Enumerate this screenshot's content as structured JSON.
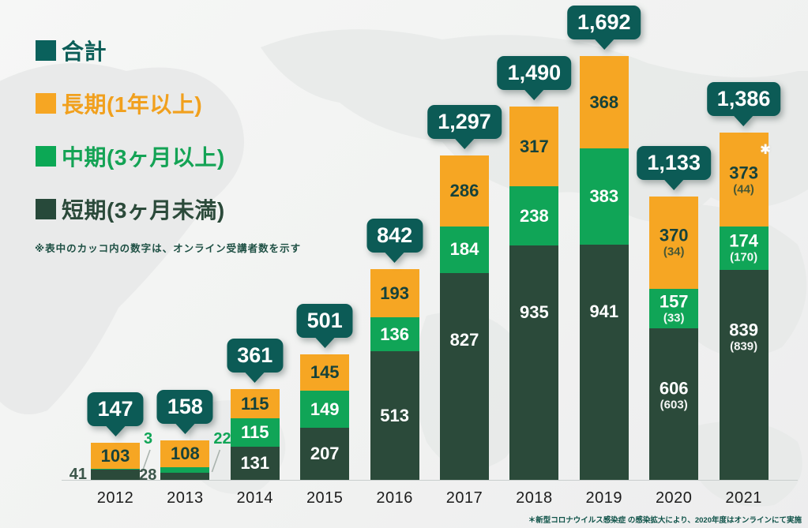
{
  "colors": {
    "background": "#f2f3f2",
    "map_shape": "#e6e8e7",
    "bubble": "#0c5b56",
    "bubble_text": "#ffffff",
    "total_legend": "#0a615c",
    "long_orange": "#f6a623",
    "mid_green": "#0fa65a",
    "short_dark_green": "#2b4a3a",
    "dark_label_text": "#16423b",
    "outside_dark_label": "#3c564a",
    "leader_line": "#a9b3ae",
    "axis_line": "#c9cecd",
    "note_text": "#1d4f43"
  },
  "legend": {
    "items": [
      {
        "label": "合計",
        "color": "#0a615c",
        "text_color": "#0c5e58"
      },
      {
        "label": "長期(1年以上)",
        "color": "#f6a623",
        "text_color": "#f1a01d"
      },
      {
        "label": "中期(3ヶ月以上)",
        "color": "#0ca855",
        "text_color": "#14a355"
      },
      {
        "label": "短期(3ヶ月未満)",
        "color": "#27493a",
        "text_color": "#2b4a3a"
      }
    ]
  },
  "online_note": "※表中のカッコ内の数字は、オンライン受講者数を示す",
  "covid_footnote": "＊新型コロナウイルス感染症 の感染拡大により、2020年度はオンラインにて実施",
  "asterisk_marker": "✱",
  "chart_data": {
    "type": "bar",
    "stacked": true,
    "title": "",
    "xlabel": "",
    "ylabel": "",
    "grid": false,
    "legend_position": "top-left",
    "categories": [
      "2012",
      "2013",
      "2014",
      "2015",
      "2016",
      "2017",
      "2018",
      "2019",
      "2020",
      "2021"
    ],
    "series": [
      {
        "name": "短期(3ヶ月未満)",
        "color": "#2b4a3a",
        "label_color": "#ffffff",
        "values": [
          41,
          28,
          131,
          207,
          513,
          827,
          935,
          941,
          606,
          839
        ],
        "online_values": [
          null,
          null,
          null,
          null,
          null,
          null,
          null,
          null,
          603,
          839
        ]
      },
      {
        "name": "中期(3ヶ月以上)",
        "color": "#10a557",
        "label_color": "#ffffff",
        "values": [
          3,
          22,
          115,
          149,
          136,
          184,
          238,
          383,
          157,
          174
        ],
        "online_values": [
          null,
          null,
          null,
          null,
          null,
          null,
          null,
          null,
          33,
          170
        ]
      },
      {
        "name": "長期(1年以上)",
        "color": "#f6a623",
        "label_color": "#16423b",
        "values": [
          103,
          108,
          115,
          145,
          193,
          286,
          317,
          368,
          370,
          373
        ],
        "online_values": [
          null,
          null,
          null,
          null,
          null,
          null,
          null,
          null,
          34,
          44
        ]
      }
    ],
    "totals": [
      147,
      158,
      361,
      501,
      842,
      1297,
      1490,
      1692,
      1133,
      1386
    ],
    "totals_display": [
      "147",
      "158",
      "361",
      "501",
      "842",
      "1,297",
      "1,490",
      "1,692",
      "1,133",
      "1,386"
    ],
    "ylim": [
      0,
      1750
    ]
  }
}
